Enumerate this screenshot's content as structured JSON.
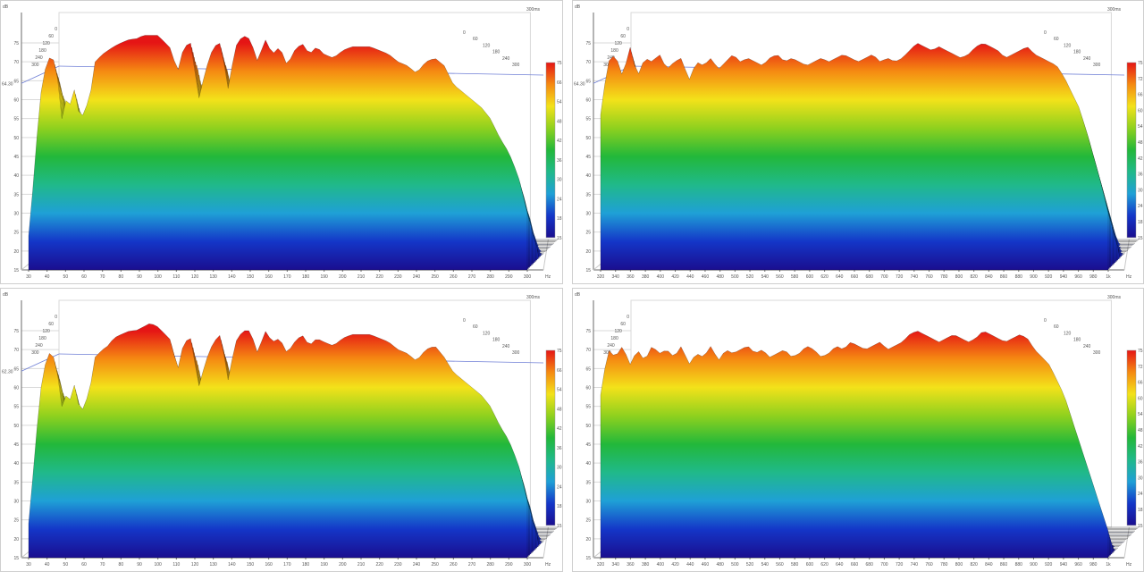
{
  "colors": {
    "axis": "#6a6a6a",
    "grid": "#d9d9d9",
    "perspective": "#c9c9c9",
    "threshold": "#6f7fd6",
    "ink": "#000000"
  },
  "colorbar_stops": [
    "#1a0e8f",
    "#1436c8",
    "#1fa0d6",
    "#20b98a",
    "#22b83a",
    "#8fd11e",
    "#f3e21a",
    "#f58a12",
    "#e51515"
  ],
  "chart_data": [
    {
      "type": "area",
      "subtype": "waterfall-3d",
      "title": "",
      "xlabel": "",
      "ylabel": "",
      "y_unit": "dB",
      "x_unit": "Hz",
      "time_label": "300ms",
      "time_ticks": [
        "0",
        "60",
        "120",
        "180",
        "240",
        "300"
      ],
      "x_ticks": [
        "30",
        "40",
        "50",
        "60",
        "70",
        "80",
        "90",
        "100",
        "110",
        "120",
        "130",
        "140",
        "150",
        "160",
        "170",
        "180",
        "190",
        "200",
        "210",
        "220",
        "230",
        "240",
        "250",
        "260",
        "270",
        "280",
        "290",
        "300"
      ],
      "y_ticks": [
        "15",
        "20",
        "25",
        "30",
        "35",
        "40",
        "45",
        "50",
        "55",
        "60",
        "65",
        "70",
        "75"
      ],
      "threshold_label": "64.30",
      "colorbar_ticks": [
        "75",
        "66",
        "54",
        "48",
        "42",
        "36",
        "30",
        "24",
        "18",
        "15"
      ],
      "ylim": [
        15,
        75
      ],
      "xlim": [
        30,
        300
      ],
      "grid": true,
      "legend": "colorbar-right",
      "series": [
        {
          "x": [
            30,
            33,
            36,
            39,
            42,
            45,
            48,
            50,
            52,
            55,
            58,
            60,
            63,
            66,
            70,
            73,
            76,
            80,
            85,
            88,
            92,
            96,
            100,
            104,
            108,
            110,
            114,
            118,
            122,
            126,
            130,
            134,
            138,
            142,
            146,
            150,
            154,
            158,
            162,
            166,
            170,
            174,
            178,
            182,
            186,
            190,
            195,
            200,
            205,
            210,
            215,
            220,
            225,
            230,
            235,
            240,
            245,
            250,
            255,
            260,
            265,
            270,
            275,
            280,
            285,
            290,
            295,
            300
          ],
          "values": [
            24,
            40,
            60,
            68,
            72,
            69,
            55,
            60,
            58,
            63,
            54,
            57,
            60,
            70,
            72,
            73,
            74,
            75,
            76,
            76,
            77,
            77,
            77,
            75,
            73,
            66,
            74,
            75,
            60,
            68,
            74,
            75,
            63,
            74,
            77,
            76,
            70,
            76,
            72,
            74,
            69,
            73,
            75,
            72,
            74,
            72,
            71,
            73,
            74,
            74,
            74,
            73,
            72,
            70,
            69,
            67,
            70,
            71,
            69,
            64,
            62,
            60,
            58,
            55,
            50,
            46,
            40,
            30
          ]
        }
      ]
    },
    {
      "type": "area",
      "subtype": "waterfall-3d",
      "title": "",
      "xlabel": "",
      "ylabel": "",
      "y_unit": "dB",
      "x_unit": "Hz",
      "time_label": "300ms",
      "time_ticks": [
        "0",
        "60",
        "120",
        "180",
        "240",
        "300"
      ],
      "x_ticks": [
        "320",
        "340",
        "360",
        "380",
        "400",
        "420",
        "440",
        "460",
        "480",
        "500",
        "520",
        "540",
        "560",
        "580",
        "600",
        "620",
        "640",
        "660",
        "680",
        "700",
        "720",
        "740",
        "760",
        "780",
        "800",
        "820",
        "840",
        "860",
        "880",
        "900",
        "920",
        "940",
        "960",
        "980",
        "1k"
      ],
      "y_ticks": [
        "15",
        "20",
        "25",
        "30",
        "35",
        "40",
        "45",
        "50",
        "55",
        "60",
        "65",
        "70",
        "75"
      ],
      "threshold_label": "64.30",
      "colorbar_ticks": [
        "75",
        "72",
        "66",
        "60",
        "54",
        "48",
        "42",
        "36",
        "30",
        "24",
        "18",
        "15"
      ],
      "ylim": [
        15,
        75
      ],
      "xlim": [
        310,
        1000
      ],
      "grid": true,
      "legend": "colorbar-right",
      "series": [
        {
          "x": [
            310,
            320,
            330,
            340,
            350,
            360,
            370,
            380,
            390,
            400,
            410,
            420,
            430,
            440,
            450,
            460,
            470,
            480,
            490,
            500,
            510,
            520,
            530,
            540,
            550,
            560,
            570,
            580,
            590,
            600,
            610,
            620,
            630,
            640,
            650,
            660,
            670,
            680,
            690,
            700,
            710,
            720,
            730,
            740,
            750,
            760,
            770,
            780,
            790,
            800,
            810,
            820,
            830,
            840,
            850,
            860,
            870,
            880,
            890,
            900,
            910,
            920,
            930,
            940,
            950,
            960,
            970,
            980,
            990,
            1000
          ],
          "values": [
            56,
            70,
            72,
            66,
            74,
            66,
            71,
            70,
            72,
            68,
            70,
            71,
            65,
            70,
            69,
            71,
            68,
            70,
            72,
            70,
            71,
            70,
            69,
            71,
            72,
            70,
            71,
            70,
            69,
            70,
            71,
            70,
            71,
            72,
            71,
            70,
            71,
            72,
            70,
            71,
            70,
            71,
            73,
            75,
            74,
            73,
            74,
            73,
            72,
            71,
            72,
            74,
            75,
            74,
            73,
            71,
            72,
            73,
            74,
            72,
            71,
            70,
            69,
            66,
            62,
            58,
            52,
            45,
            38,
            30
          ]
        }
      ]
    },
    {
      "type": "area",
      "subtype": "waterfall-3d",
      "title": "",
      "xlabel": "",
      "ylabel": "",
      "y_unit": "dB",
      "x_unit": "Hz",
      "time_label": "300ms",
      "time_ticks": [
        "0",
        "60",
        "120",
        "180",
        "240",
        "300"
      ],
      "x_ticks": [
        "30",
        "40",
        "50",
        "60",
        "70",
        "80",
        "90",
        "100",
        "110",
        "120",
        "130",
        "140",
        "150",
        "160",
        "170",
        "180",
        "190",
        "200",
        "210",
        "220",
        "230",
        "240",
        "250",
        "260",
        "270",
        "280",
        "290",
        "300"
      ],
      "y_ticks": [
        "15",
        "20",
        "25",
        "30",
        "35",
        "40",
        "45",
        "50",
        "55",
        "60",
        "65",
        "70",
        "75"
      ],
      "threshold_label": "62.30",
      "colorbar_ticks": [
        "75",
        "66",
        "54",
        "48",
        "42",
        "36",
        "30",
        "24",
        "18",
        "15"
      ],
      "ylim": [
        15,
        75
      ],
      "xlim": [
        30,
        300
      ],
      "grid": true,
      "legend": "colorbar-right",
      "series": [
        {
          "x": [
            30,
            33,
            36,
            39,
            42,
            45,
            48,
            50,
            52,
            55,
            58,
            60,
            63,
            66,
            70,
            73,
            76,
            80,
            85,
            88,
            92,
            96,
            100,
            104,
            108,
            110,
            114,
            118,
            122,
            126,
            130,
            134,
            138,
            142,
            146,
            150,
            154,
            158,
            162,
            166,
            170,
            174,
            178,
            182,
            186,
            190,
            195,
            200,
            205,
            210,
            215,
            220,
            225,
            230,
            235,
            240,
            245,
            250,
            255,
            260,
            265,
            270,
            275,
            280,
            285,
            290,
            295,
            300
          ],
          "values": [
            24,
            40,
            58,
            66,
            70,
            66,
            55,
            58,
            56,
            61,
            53,
            55,
            59,
            68,
            70,
            71,
            73,
            74,
            75,
            75,
            76,
            77,
            76,
            74,
            72,
            63,
            72,
            73,
            60,
            67,
            72,
            74,
            62,
            72,
            75,
            75,
            69,
            75,
            72,
            73,
            69,
            72,
            74,
            71,
            73,
            72,
            71,
            73,
            74,
            74,
            74,
            73,
            72,
            70,
            69,
            67,
            70,
            71,
            68,
            64,
            62,
            60,
            58,
            55,
            50,
            46,
            40,
            30
          ]
        }
      ]
    },
    {
      "type": "area",
      "subtype": "waterfall-3d",
      "title": "",
      "xlabel": "",
      "ylabel": "",
      "y_unit": "dB",
      "x_unit": "Hz",
      "time_label": "300ms",
      "time_ticks": [
        "0",
        "60",
        "120",
        "180",
        "240",
        "300"
      ],
      "x_ticks": [
        "320",
        "340",
        "360",
        "380",
        "400",
        "420",
        "440",
        "460",
        "480",
        "500",
        "520",
        "540",
        "560",
        "580",
        "600",
        "620",
        "640",
        "660",
        "680",
        "700",
        "720",
        "740",
        "760",
        "780",
        "800",
        "820",
        "840",
        "860",
        "880",
        "900",
        "920",
        "940",
        "960",
        "980",
        "1k"
      ],
      "y_ticks": [
        "15",
        "20",
        "25",
        "30",
        "35",
        "40",
        "45",
        "50",
        "55",
        "60",
        "65",
        "70",
        "75"
      ],
      "threshold_label": "",
      "colorbar_ticks": [
        "75",
        "72",
        "66",
        "60",
        "54",
        "48",
        "42",
        "36",
        "30",
        "24",
        "18",
        "15"
      ],
      "ylim": [
        15,
        75
      ],
      "xlim": [
        310,
        1000
      ],
      "grid": true,
      "legend": "colorbar-right",
      "series": [
        {
          "x": [
            310,
            320,
            330,
            340,
            350,
            360,
            370,
            380,
            390,
            400,
            410,
            420,
            430,
            440,
            450,
            460,
            470,
            480,
            490,
            500,
            510,
            520,
            530,
            540,
            550,
            560,
            570,
            580,
            590,
            600,
            610,
            620,
            630,
            640,
            650,
            660,
            670,
            680,
            690,
            700,
            710,
            720,
            730,
            740,
            750,
            760,
            770,
            780,
            790,
            800,
            810,
            820,
            830,
            840,
            850,
            860,
            870,
            880,
            890,
            900,
            910,
            920,
            930,
            940,
            950,
            960,
            970,
            980,
            990,
            1000
          ],
          "values": [
            58,
            70,
            68,
            71,
            66,
            70,
            67,
            71,
            69,
            70,
            68,
            71,
            66,
            69,
            68,
            71,
            67,
            70,
            69,
            70,
            71,
            69,
            70,
            68,
            69,
            70,
            68,
            69,
            71,
            70,
            68,
            69,
            71,
            70,
            72,
            71,
            70,
            71,
            72,
            70,
            71,
            72,
            74,
            75,
            74,
            73,
            72,
            73,
            74,
            73,
            72,
            73,
            75,
            74,
            73,
            72,
            73,
            74,
            73,
            70,
            68,
            66,
            62,
            58,
            52,
            46,
            40,
            34,
            28,
            22
          ]
        }
      ]
    }
  ]
}
